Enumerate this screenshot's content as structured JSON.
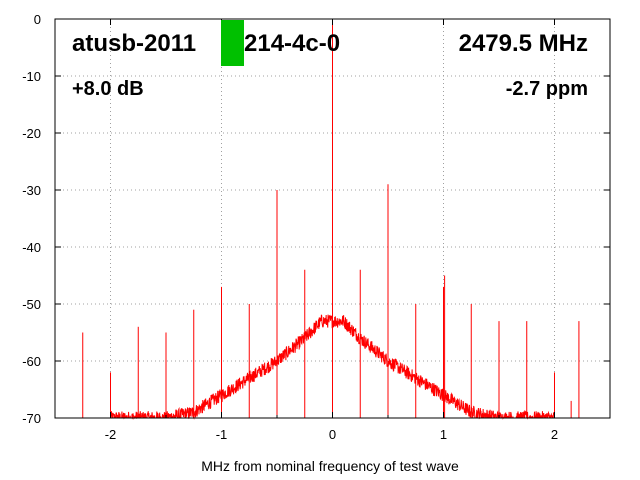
{
  "colors": {
    "series": "#ff0000",
    "marker": "#00c000",
    "grid": "#a0a0a0",
    "axis": "#000000",
    "background": "#ffffff"
  },
  "annotations": {
    "device": "atusb-2011",
    "device_suffix": "214-4c-0",
    "frequency": "2479.5 MHz",
    "gain": "+8.0 dB",
    "offset": "-2.7 ppm"
  },
  "chart_data": {
    "type": "line",
    "xlabel": "MHz from nominal frequency of test wave",
    "ylabel": "",
    "xlim": [
      -2.5,
      2.5
    ],
    "ylim": [
      -70,
      0
    ],
    "grid": true,
    "legend": "none",
    "x_ticks": [
      -2,
      -1,
      0,
      1,
      2
    ],
    "x_tick_labels": [
      "-2",
      "-1",
      "0",
      "1",
      "2"
    ],
    "y_ticks": [
      0,
      -10,
      -20,
      -30,
      -40,
      -50,
      -60,
      -70
    ],
    "y_tick_labels": [
      "0",
      "-10",
      "-20",
      "-30",
      "-40",
      "-50",
      "-60",
      "-70"
    ],
    "noise_floor": {
      "x": [
        -2.0,
        -1.5,
        -1.25,
        -1.0,
        -0.75,
        -0.5,
        -0.25,
        -0.1,
        0.0,
        0.1,
        0.25,
        0.5,
        0.75,
        1.0,
        1.25,
        1.5,
        2.0
      ],
      "y": [
        -70,
        -70,
        -69,
        -66,
        -63,
        -60,
        -56,
        -53,
        -53,
        -53,
        -56,
        -60,
        -63,
        -66,
        -69,
        -70,
        -70
      ]
    },
    "spurs": {
      "x": [
        -2.25,
        -2.0,
        -1.75,
        -1.5,
        -1.25,
        -1.0,
        -0.75,
        -0.5,
        -0.25,
        0.0,
        0.25,
        0.5,
        0.75,
        1.0,
        1.01,
        1.25,
        1.5,
        1.75,
        2.0,
        2.15,
        2.22
      ],
      "y": [
        -55,
        -62,
        -54,
        -55,
        -51,
        -47,
        -50,
        -30,
        -44,
        0,
        -44,
        -29,
        -50,
        -47,
        -45,
        -50,
        -53,
        -53,
        -62,
        -67,
        -53
      ]
    }
  }
}
